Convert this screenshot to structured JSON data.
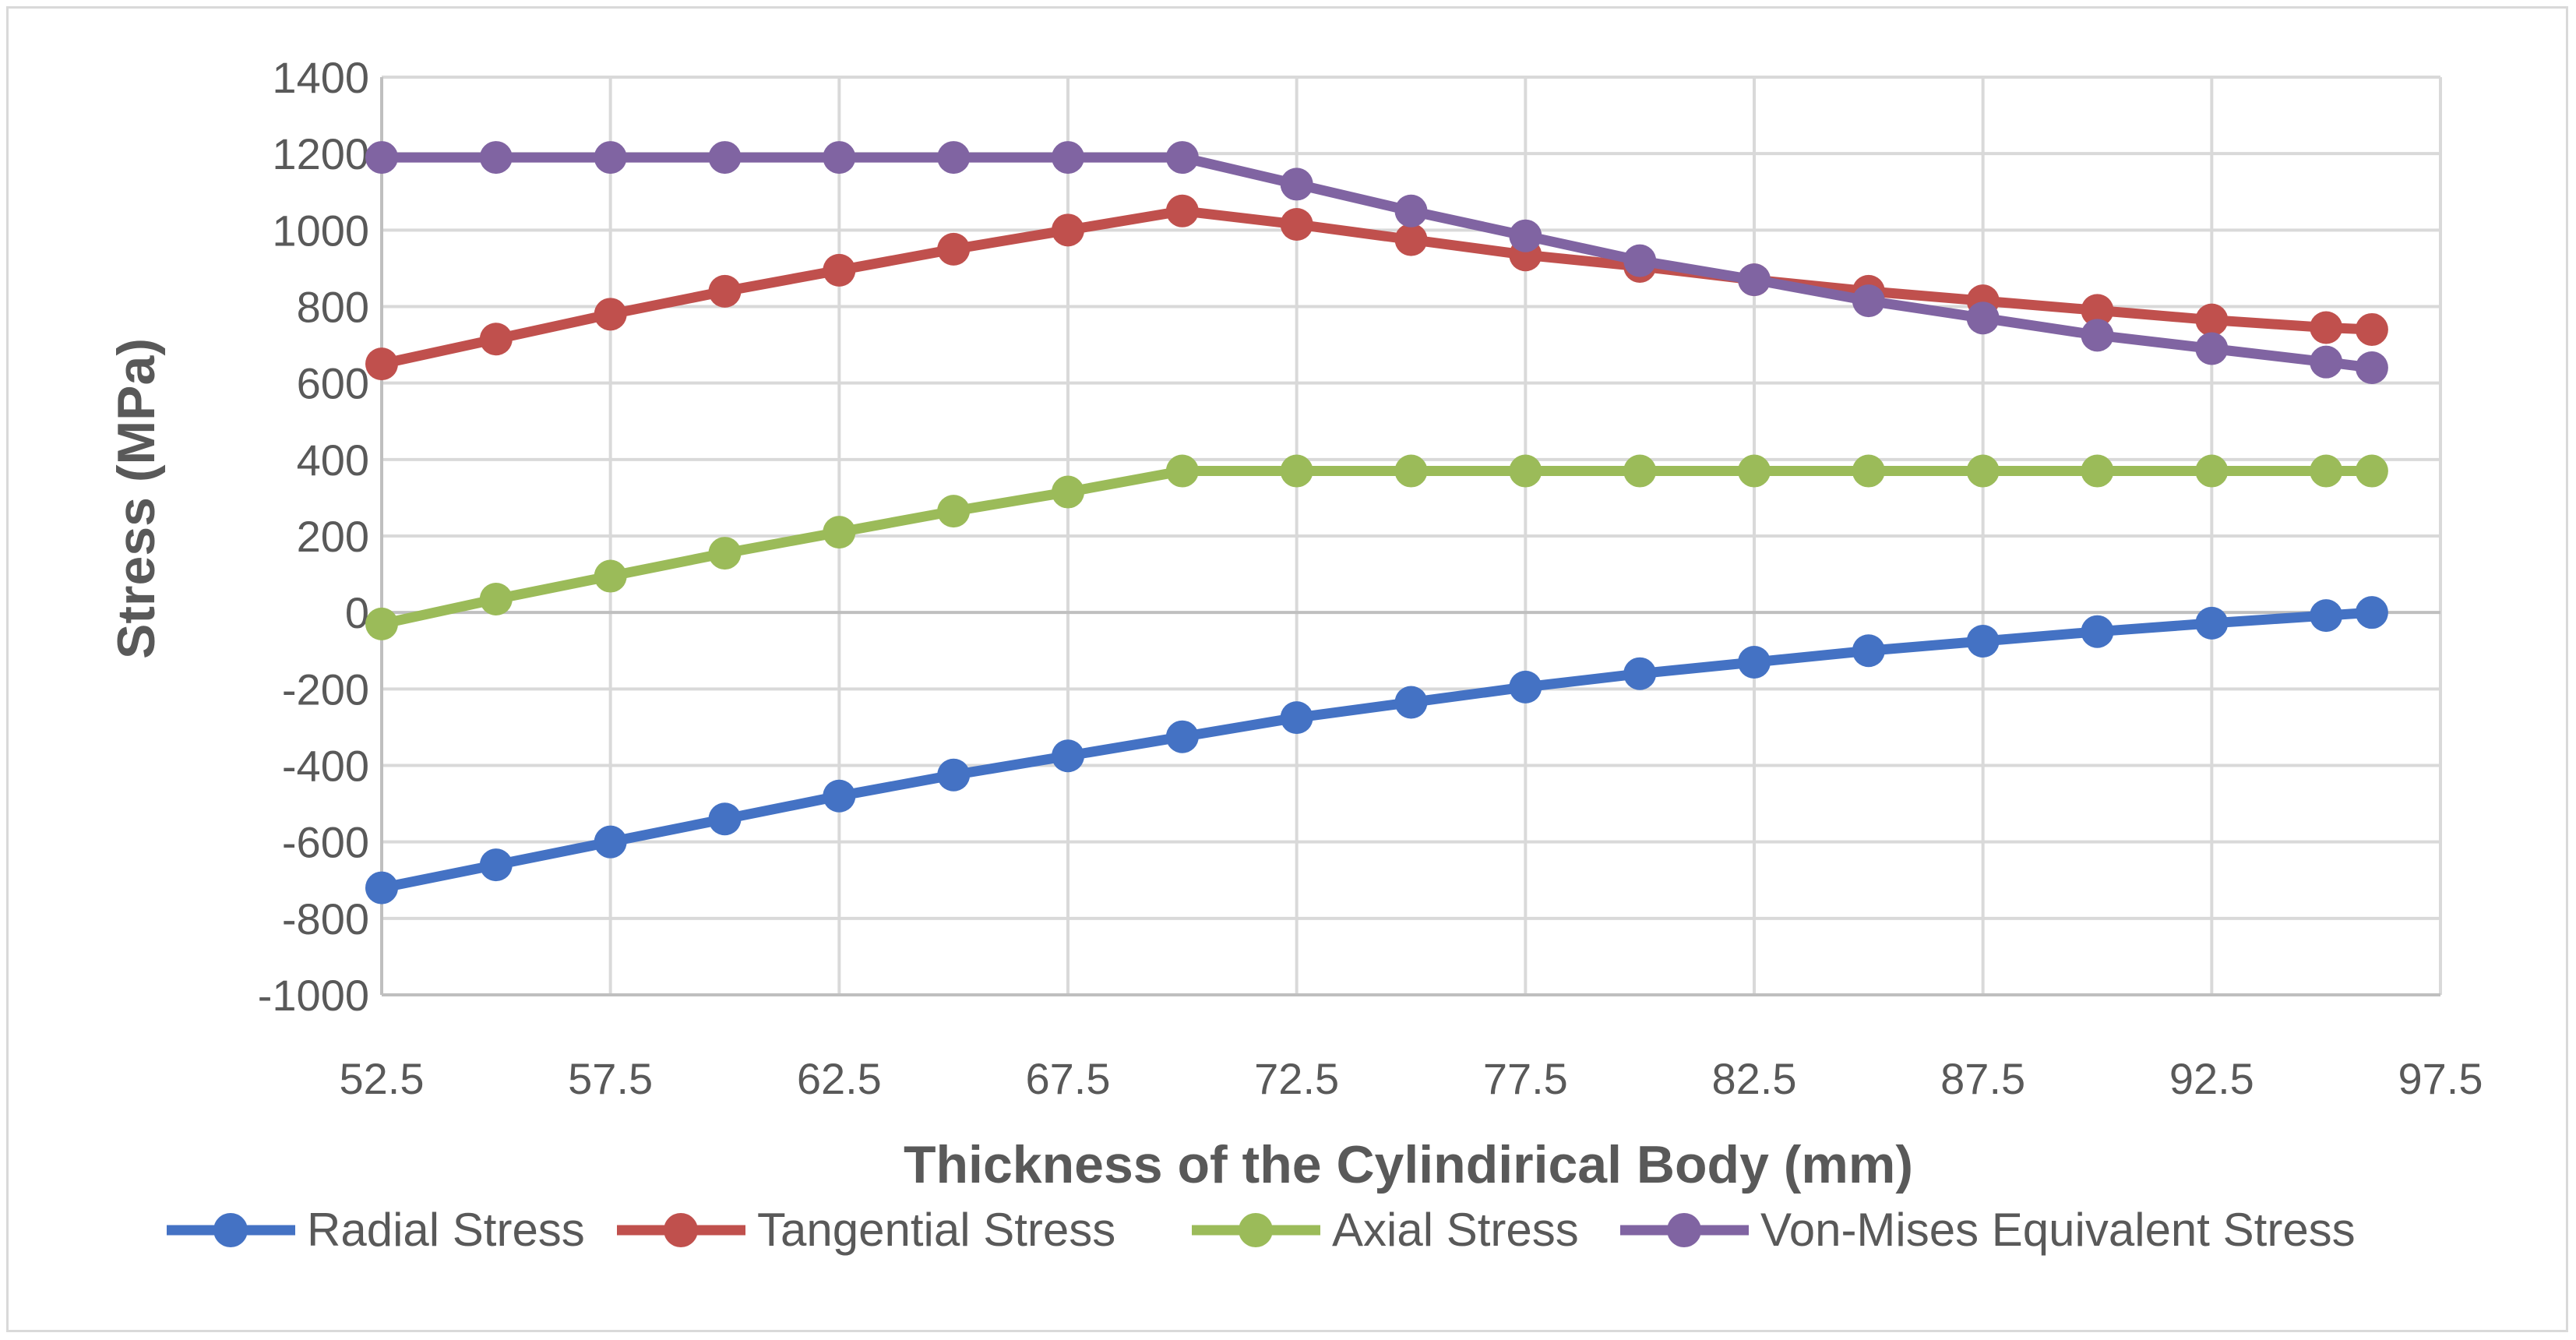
{
  "chart_data": {
    "type": "line",
    "title": "",
    "xlabel": "Thickness of the Cylindirical Body (mm)",
    "ylabel": "Stress (MPa)",
    "xlim": [
      52.5,
      97.5
    ],
    "ylim": [
      -1000,
      1400
    ],
    "grid": true,
    "legend_position": "bottom",
    "x_ticks": [
      "52.5",
      "57.5",
      "62.5",
      "67.5",
      "72.5",
      "77.5",
      "82.5",
      "87.5",
      "92.5",
      "97.5"
    ],
    "x_tick_values": [
      52.5,
      57.5,
      62.5,
      67.5,
      72.5,
      77.5,
      82.5,
      87.5,
      92.5,
      97.5
    ],
    "y_ticks": [
      "1400",
      "1200",
      "1000",
      "800",
      "600",
      "400",
      "200",
      "0",
      "-200",
      "-400",
      "-600",
      "-800",
      "-1000"
    ],
    "y_tick_values": [
      1400,
      1200,
      1000,
      800,
      600,
      400,
      200,
      0,
      -200,
      -400,
      -600,
      -800,
      -1000
    ],
    "x": [
      52.5,
      55,
      57.5,
      60,
      62.5,
      65,
      67.5,
      70,
      72.5,
      75,
      77.5,
      80,
      82.5,
      85,
      87.5,
      90,
      92.5,
      95,
      96
    ],
    "series": [
      {
        "name": "Radial Stress",
        "color": "#4472c4",
        "values": [
          -720,
          -660,
          -600,
          -540,
          -480,
          -425,
          -375,
          -325,
          -275,
          -235,
          -195,
          -160,
          -130,
          -100,
          -75,
          -50,
          -28,
          -8,
          0
        ]
      },
      {
        "name": "Tangential Stress",
        "color": "#c0504d",
        "values": [
          650,
          715,
          780,
          840,
          895,
          950,
          1000,
          1050,
          1015,
          975,
          935,
          905,
          870,
          840,
          815,
          790,
          765,
          745,
          740
        ]
      },
      {
        "name": "Axial Stress",
        "color": "#9bbb59",
        "values": [
          -30,
          35,
          95,
          155,
          210,
          265,
          315,
          370,
          370,
          370,
          370,
          370,
          370,
          370,
          370,
          370,
          370,
          370,
          370
        ]
      },
      {
        "name": "Von-Mises Equivalent Stress",
        "color": "#8064a2",
        "values": [
          1190,
          1190,
          1190,
          1190,
          1190,
          1190,
          1190,
          1190,
          1120,
          1050,
          985,
          920,
          870,
          815,
          770,
          725,
          690,
          655,
          640
        ]
      }
    ]
  },
  "colors": {
    "grid": "#d9d9d9",
    "axis": "#bfbfbf",
    "text": "#595959",
    "frame": "#d9d9d9"
  }
}
